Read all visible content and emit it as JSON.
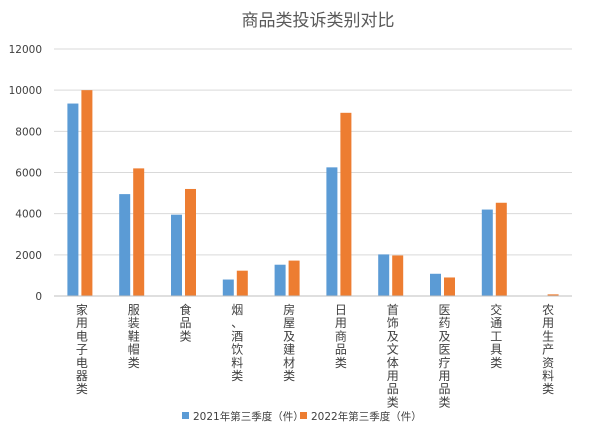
{
  "chart_data": {
    "type": "bar",
    "title": "商品类投诉类别对比",
    "xlabel": "",
    "ylabel": "",
    "ylim": [
      0,
      12000
    ],
    "yticks": [
      0,
      2000,
      4000,
      6000,
      8000,
      10000,
      12000
    ],
    "grid": true,
    "legend_position": "bottom",
    "categories": [
      "家用电子电器类",
      "服装鞋帽类",
      "食品类",
      "烟、酒饮料类",
      "房屋及建材类",
      "日用商品类",
      "首饰及文体用品类",
      "医药及医疗用品类",
      "交通工具类",
      "农用生产资料类"
    ],
    "series": [
      {
        "name": "2021年第三季度（件）",
        "color": "#5B9BD5",
        "values": [
          9350,
          4950,
          3950,
          800,
          1520,
          6250,
          2020,
          1080,
          4200,
          0
        ]
      },
      {
        "name": "2022年第三季度（件）",
        "color": "#ED7D31",
        "values": [
          10000,
          6200,
          5200,
          1230,
          1720,
          8900,
          1970,
          900,
          4530,
          80
        ]
      }
    ]
  }
}
